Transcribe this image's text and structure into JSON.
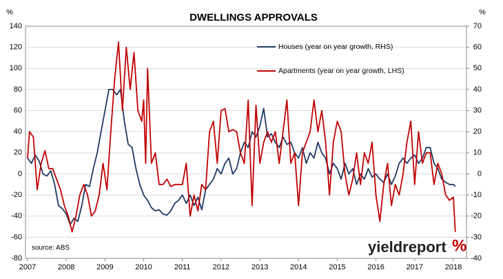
{
  "chart_data": {
    "type": "line",
    "title": "DWELLINGS APPROVALS",
    "y_unit": "%",
    "y2_unit": "%",
    "source": "source: ABS",
    "logo": {
      "text": "yieldreport",
      "symbol": "%"
    },
    "xlim": [
      2007,
      2018.3
    ],
    "xticks": [
      2007,
      2008,
      2009,
      2010,
      2011,
      2012,
      2013,
      2014,
      2015,
      2016,
      2017,
      2018
    ],
    "ylim": [
      -80,
      140
    ],
    "yticks": [
      -80,
      -60,
      -40,
      -20,
      0,
      20,
      40,
      60,
      80,
      100,
      120,
      140
    ],
    "y2lim": [
      -40,
      70
    ],
    "y2ticks": [
      -40,
      -30,
      -20,
      -10,
      0,
      10,
      20,
      30,
      40,
      50,
      60,
      70
    ],
    "grid": true,
    "series": [
      {
        "name": "Houses (year on year growth, RHS)",
        "color": "#1f3864",
        "axis": "y2",
        "x": [
          2007.0,
          2007.1,
          2007.2,
          2007.3,
          2007.4,
          2007.5,
          2007.6,
          2007.7,
          2007.8,
          2007.9,
          2008.0,
          2008.1,
          2008.2,
          2008.3,
          2008.4,
          2008.5,
          2008.6,
          2008.7,
          2008.8,
          2008.9,
          2009.0,
          2009.1,
          2009.2,
          2009.3,
          2009.4,
          2009.5,
          2009.6,
          2009.7,
          2009.8,
          2009.9,
          2010.0,
          2010.1,
          2010.2,
          2010.3,
          2010.4,
          2010.5,
          2010.6,
          2010.7,
          2010.8,
          2010.9,
          2011.0,
          2011.1,
          2011.2,
          2011.3,
          2011.4,
          2011.5,
          2011.6,
          2011.7,
          2011.8,
          2011.9,
          2012.0,
          2012.1,
          2012.2,
          2012.3,
          2012.4,
          2012.5,
          2012.6,
          2012.7,
          2012.8,
          2012.9,
          2013.0,
          2013.1,
          2013.2,
          2013.3,
          2013.4,
          2013.5,
          2013.6,
          2013.7,
          2013.8,
          2013.9,
          2014.0,
          2014.1,
          2014.2,
          2014.3,
          2014.4,
          2014.5,
          2014.6,
          2014.7,
          2014.8,
          2014.9,
          2015.0,
          2015.1,
          2015.2,
          2015.3,
          2015.4,
          2015.5,
          2015.6,
          2015.7,
          2015.8,
          2015.9,
          2016.0,
          2016.1,
          2016.2,
          2016.3,
          2016.4,
          2016.5,
          2016.6,
          2016.7,
          2016.8,
          2016.9,
          2017.0,
          2017.1,
          2017.2,
          2017.3,
          2017.4,
          2017.5,
          2017.6,
          2017.7,
          2017.8,
          2017.9,
          2018.0,
          2018.05
        ],
        "values": [
          7.5,
          5,
          9,
          6,
          0,
          -1,
          1.5,
          -5,
          -15,
          -16.5,
          -19,
          -24,
          -21,
          -22.5,
          -15,
          -5,
          -6,
          2.5,
          10,
          20,
          30,
          40,
          40,
          37.5,
          40,
          25,
          14,
          12.5,
          2.5,
          -5,
          -10,
          -12.5,
          -16,
          -17.5,
          -17,
          -19,
          -19.5,
          -17.5,
          -14,
          -12.5,
          -10,
          -14,
          -10,
          -15,
          -11,
          -17,
          -7.5,
          -5,
          -2.5,
          2.5,
          0,
          5,
          7.5,
          0,
          2.5,
          10,
          15,
          12.5,
          20,
          17.5,
          22.5,
          31,
          17.5,
          19,
          15,
          12.5,
          17.5,
          14,
          15,
          10,
          7.5,
          12.5,
          5,
          10,
          7.5,
          15,
          10,
          7.5,
          0,
          5,
          2.5,
          -2.5,
          5,
          0,
          2.5,
          -5,
          0,
          -2.5,
          2.5,
          -1.5,
          0,
          -2.5,
          -4,
          0,
          -5,
          -1,
          5,
          7.5,
          5,
          7.5,
          9,
          5,
          7.5,
          12.5,
          12.5,
          5,
          2.5,
          -2.5,
          -4,
          -5,
          -5,
          -6
        ]
      },
      {
        "name": "Apartments (year on year growth, LHS)",
        "color": "#c00000",
        "axis": "y",
        "x": [
          2007.0,
          2007.05,
          2007.15,
          2007.25,
          2007.35,
          2007.45,
          2007.55,
          2007.65,
          2007.75,
          2007.85,
          2007.95,
          2008.05,
          2008.15,
          2008.25,
          2008.35,
          2008.45,
          2008.55,
          2008.65,
          2008.75,
          2008.85,
          2008.95,
          2009.05,
          2009.15,
          2009.25,
          2009.35,
          2009.45,
          2009.55,
          2009.65,
          2009.75,
          2009.85,
          2009.95,
          2010.0,
          2010.05,
          2010.1,
          2010.2,
          2010.3,
          2010.4,
          2010.5,
          2010.6,
          2010.7,
          2010.8,
          2010.9,
          2011.0,
          2011.1,
          2011.2,
          2011.3,
          2011.4,
          2011.5,
          2011.6,
          2011.7,
          2011.8,
          2011.9,
          2012.0,
          2012.1,
          2012.2,
          2012.3,
          2012.4,
          2012.5,
          2012.6,
          2012.7,
          2012.8,
          2012.9,
          2013.0,
          2013.1,
          2013.2,
          2013.3,
          2013.4,
          2013.5,
          2013.6,
          2013.7,
          2013.8,
          2013.9,
          2014.0,
          2014.1,
          2014.2,
          2014.3,
          2014.4,
          2014.5,
          2014.6,
          2014.7,
          2014.8,
          2014.9,
          2015.0,
          2015.1,
          2015.2,
          2015.3,
          2015.4,
          2015.5,
          2015.6,
          2015.7,
          2015.8,
          2015.9,
          2016.0,
          2016.1,
          2016.2,
          2016.3,
          2016.4,
          2016.5,
          2016.6,
          2016.7,
          2016.8,
          2016.9,
          2017.0,
          2017.1,
          2017.2,
          2017.3,
          2017.4,
          2017.5,
          2017.6,
          2017.7,
          2017.8,
          2017.9,
          2018.0,
          2018.05
        ],
        "values": [
          15,
          40,
          35,
          -15,
          10,
          22,
          5,
          5,
          -5,
          -15,
          -30,
          -40,
          -55,
          -40,
          -20,
          -10,
          -20,
          -40,
          -35,
          -20,
          10,
          -15,
          40,
          90,
          125,
          60,
          120,
          80,
          115,
          60,
          50,
          70,
          10,
          100,
          10,
          20,
          -10,
          -10,
          -5,
          -12,
          -10,
          -10,
          -10,
          10,
          -40,
          -20,
          -35,
          -10,
          -15,
          40,
          50,
          10,
          60,
          62,
          40,
          42,
          40,
          20,
          10,
          70,
          -30,
          65,
          10,
          30,
          40,
          30,
          40,
          10,
          40,
          70,
          10,
          20,
          -30,
          20,
          30,
          40,
          70,
          40,
          60,
          30,
          -20,
          30,
          50,
          40,
          0,
          -20,
          -5,
          20,
          -10,
          20,
          10,
          30,
          -20,
          -45,
          -10,
          10,
          -30,
          -10,
          -20,
          0,
          30,
          50,
          -10,
          40,
          10,
          20,
          20,
          -10,
          10,
          0,
          -20,
          -25,
          -22,
          -55
        ]
      }
    ]
  }
}
